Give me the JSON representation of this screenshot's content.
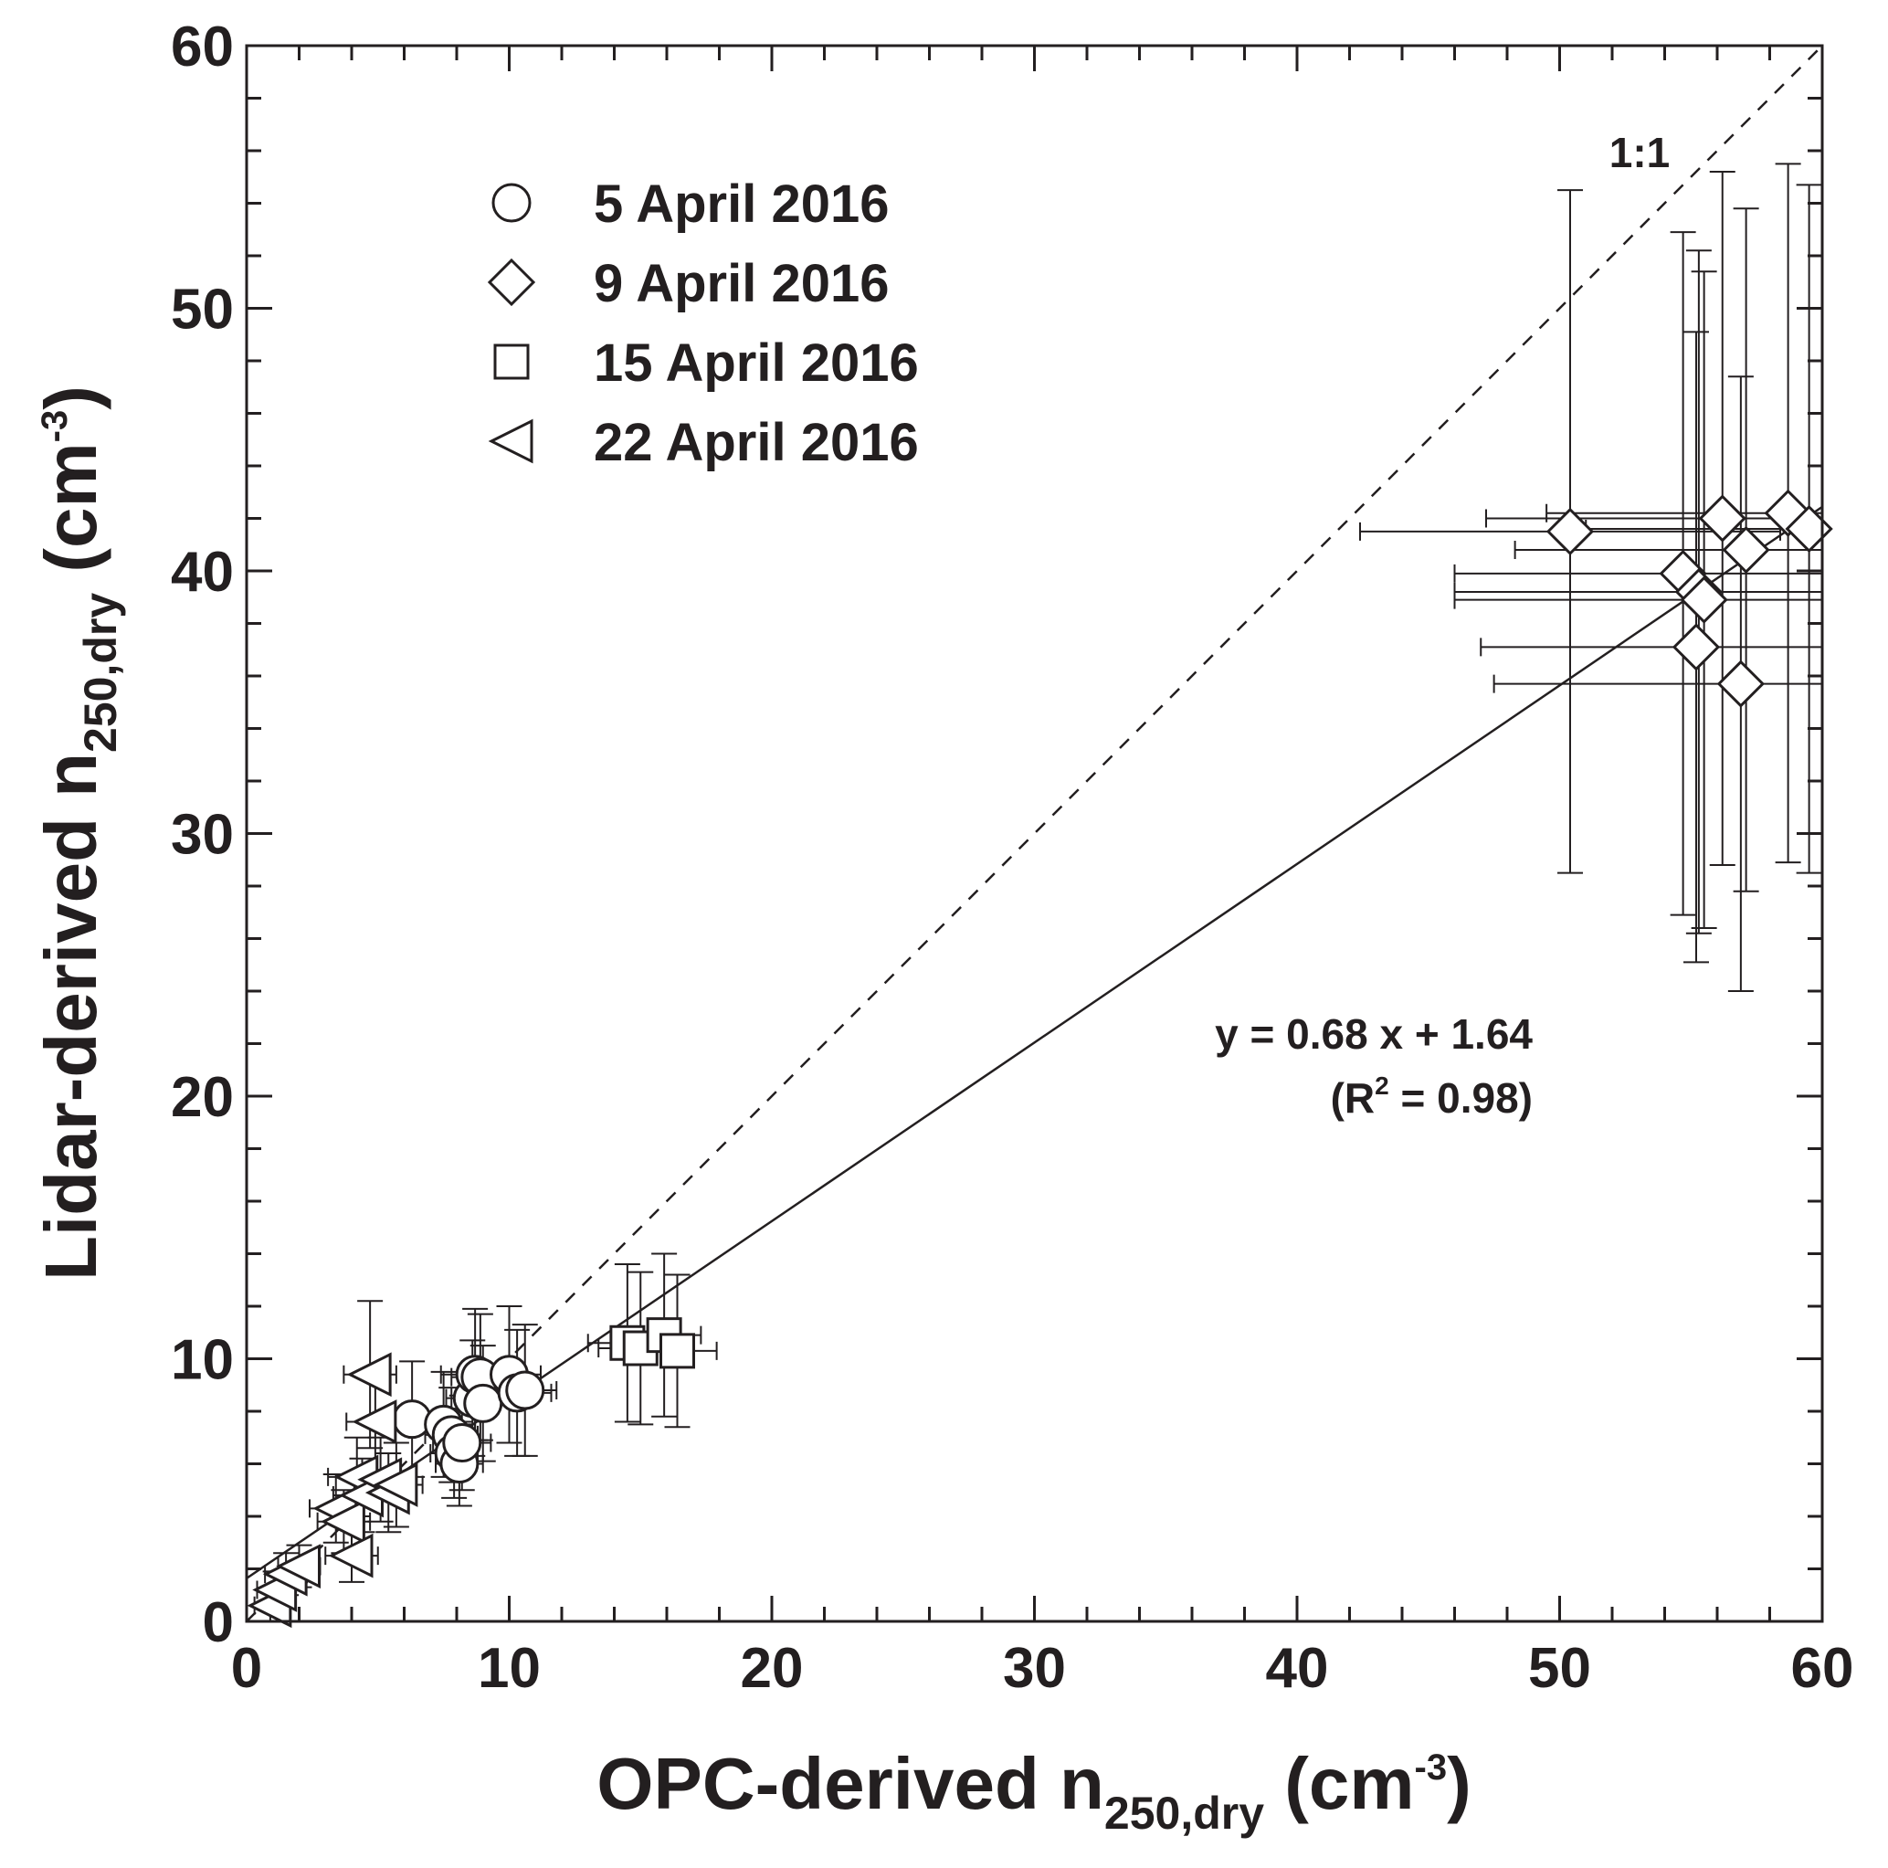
{
  "chart_data": {
    "type": "scatter",
    "xlabel": {
      "main": "OPC-derived n",
      "sub": "250,dry",
      "unit_open": " (cm",
      "unit_sup": "-3",
      "unit_close": ")"
    },
    "ylabel": {
      "main": "Lidar-derived n",
      "sub": "250,dry",
      "unit_open": " (cm",
      "unit_sup": "-3",
      "unit_close": ")"
    },
    "xlim": [
      0,
      60
    ],
    "ylim": [
      0,
      60
    ],
    "xticks": [
      "0",
      "10",
      "20",
      "30",
      "40",
      "50",
      "60"
    ],
    "yticks": [
      "0",
      "10",
      "20",
      "30",
      "40",
      "50",
      "60"
    ],
    "grid": false,
    "legend_placement": "top-left",
    "reference_line": {
      "label": "1:1",
      "slope": 1,
      "intercept": 0,
      "style": "dashed"
    },
    "fit_line": {
      "slope": 0.68,
      "intercept": 1.64,
      "style": "solid"
    },
    "fit_text": {
      "equation": "y = 0.68 x + 1.64",
      "r2_open": "(R",
      "r2_sup": "2",
      "r2_close": " = 0.98)"
    },
    "series": [
      {
        "name": "5 April 2016",
        "marker": "circle",
        "points": [
          {
            "x": 6.3,
            "y": 7.7,
            "xerr": 1.3,
            "yerr": 2.2
          },
          {
            "x": 7.5,
            "y": 7.5,
            "xerr": 1.2,
            "yerr": 2.0
          },
          {
            "x": 7.8,
            "y": 7.1,
            "xerr": 1.0,
            "yerr": 1.8
          },
          {
            "x": 7.9,
            "y": 6.4,
            "xerr": 0.9,
            "yerr": 1.7
          },
          {
            "x": 8.1,
            "y": 6.0,
            "xerr": 0.9,
            "yerr": 1.6
          },
          {
            "x": 8.2,
            "y": 6.8,
            "xerr": 1.1,
            "yerr": 1.8
          },
          {
            "x": 8.6,
            "y": 8.5,
            "xerr": 1.0,
            "yerr": 2.2
          },
          {
            "x": 8.7,
            "y": 9.4,
            "xerr": 1.3,
            "yerr": 2.5
          },
          {
            "x": 8.9,
            "y": 9.3,
            "xerr": 1.1,
            "yerr": 2.4
          },
          {
            "x": 9.0,
            "y": 8.3,
            "xerr": 1.0,
            "yerr": 2.2
          },
          {
            "x": 10.0,
            "y": 9.4,
            "xerr": 1.2,
            "yerr": 2.6
          },
          {
            "x": 10.3,
            "y": 8.7,
            "xerr": 1.3,
            "yerr": 2.4
          },
          {
            "x": 10.6,
            "y": 8.8,
            "xerr": 1.2,
            "yerr": 2.5
          }
        ]
      },
      {
        "name": "9 April 2016",
        "marker": "diamond",
        "points": [
          {
            "x": 50.4,
            "y": 41.5,
            "xerr": 8.0,
            "yerr": 13.0
          },
          {
            "x": 54.7,
            "y": 39.9,
            "xerr": 8.7,
            "yerr": 13.0
          },
          {
            "x": 55.2,
            "y": 37.1,
            "xerr": 8.2,
            "yerr": 12.0
          },
          {
            "x": 55.3,
            "y": 39.2,
            "xerr": 9.3,
            "yerr": 13.0
          },
          {
            "x": 55.5,
            "y": 38.9,
            "xerr": 9.5,
            "yerr": 12.5
          },
          {
            "x": 56.2,
            "y": 42.0,
            "xerr": 9.0,
            "yerr": 13.2
          },
          {
            "x": 56.9,
            "y": 35.7,
            "xerr": 9.4,
            "yerr": 11.7
          },
          {
            "x": 57.1,
            "y": 40.8,
            "xerr": 8.8,
            "yerr": 13.0
          },
          {
            "x": 58.7,
            "y": 42.2,
            "xerr": 9.2,
            "yerr": 13.3
          },
          {
            "x": 59.5,
            "y": 41.6,
            "xerr": 8.5,
            "yerr": 13.1
          }
        ]
      },
      {
        "name": "15 April 2016",
        "marker": "square",
        "points": [
          {
            "x": 14.5,
            "y": 10.6,
            "xerr": 1.5,
            "yerr": 3.0
          },
          {
            "x": 15.0,
            "y": 10.4,
            "xerr": 1.6,
            "yerr": 2.9
          },
          {
            "x": 15.9,
            "y": 10.9,
            "xerr": 1.4,
            "yerr": 3.1
          },
          {
            "x": 16.4,
            "y": 10.3,
            "xerr": 1.5,
            "yerr": 2.9
          }
        ]
      },
      {
        "name": "22 April 2016",
        "marker": "triangle-left",
        "points": [
          {
            "x": 0.9,
            "y": 0.6,
            "xerr": 0.6,
            "yerr": 0.6
          },
          {
            "x": 1.1,
            "y": 1.2,
            "xerr": 0.7,
            "yerr": 0.7
          },
          {
            "x": 1.5,
            "y": 1.8,
            "xerr": 0.8,
            "yerr": 0.8
          },
          {
            "x": 2.0,
            "y": 2.1,
            "xerr": 0.8,
            "yerr": 0.8
          },
          {
            "x": 3.4,
            "y": 4.3,
            "xerr": 1.0,
            "yerr": 1.3
          },
          {
            "x": 3.7,
            "y": 3.8,
            "xerr": 1.0,
            "yerr": 1.2
          },
          {
            "x": 4.0,
            "y": 2.5,
            "xerr": 1.0,
            "yerr": 1.0
          },
          {
            "x": 4.2,
            "y": 5.5,
            "xerr": 1.1,
            "yerr": 1.5
          },
          {
            "x": 4.4,
            "y": 4.8,
            "xerr": 1.1,
            "yerr": 1.4
          },
          {
            "x": 4.7,
            "y": 9.4,
            "xerr": 1.0,
            "yerr": 2.8
          },
          {
            "x": 4.9,
            "y": 7.6,
            "xerr": 1.1,
            "yerr": 2.0
          },
          {
            "x": 5.1,
            "y": 5.4,
            "xerr": 1.0,
            "yerr": 1.6
          },
          {
            "x": 5.4,
            "y": 4.9,
            "xerr": 1.0,
            "yerr": 1.5
          },
          {
            "x": 5.7,
            "y": 5.2,
            "xerr": 1.0,
            "yerr": 1.6
          }
        ]
      }
    ]
  }
}
